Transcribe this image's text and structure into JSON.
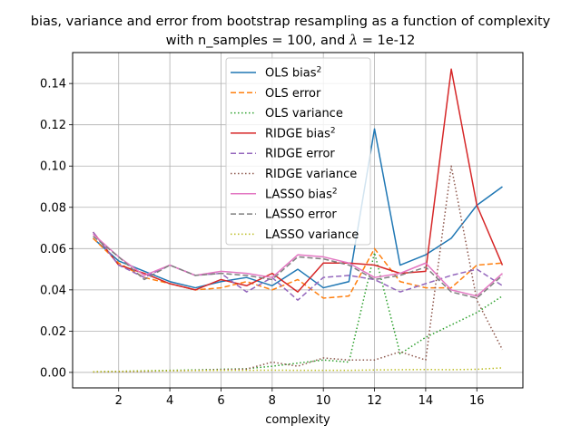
{
  "chart_data": {
    "type": "line",
    "title": "bias, variance and error from bootstrap resampling as a function of complexity",
    "subtitle_prefix": "with n_samples = 100, and ",
    "subtitle_lambda": "λ",
    "subtitle_suffix": " = 1e-12",
    "xlabel": "complexity",
    "ylabel": "",
    "xlim": [
      0.2,
      17.8
    ],
    "ylim": [
      -0.0075,
      0.155
    ],
    "grid": true,
    "legend_position": "top-center",
    "x_ticks": [
      {
        "value": 2,
        "label": "2"
      },
      {
        "value": 4,
        "label": "4"
      },
      {
        "value": 6,
        "label": "6"
      },
      {
        "value": 8,
        "label": "8"
      },
      {
        "value": 10,
        "label": "10"
      },
      {
        "value": 12,
        "label": "12"
      },
      {
        "value": 14,
        "label": "14"
      },
      {
        "value": 16,
        "label": "16"
      }
    ],
    "y_ticks": [
      {
        "value": 0.0,
        "label": "0.00"
      },
      {
        "value": 0.02,
        "label": "0.02"
      },
      {
        "value": 0.04,
        "label": "0.04"
      },
      {
        "value": 0.06,
        "label": "0.06"
      },
      {
        "value": 0.08,
        "label": "0.08"
      },
      {
        "value": 0.1,
        "label": "0.10"
      },
      {
        "value": 0.12,
        "label": "0.12"
      },
      {
        "value": 0.14,
        "label": "0.14"
      }
    ],
    "x": [
      1,
      2,
      3,
      4,
      5,
      6,
      7,
      8,
      9,
      10,
      11,
      12,
      13,
      14,
      15,
      16,
      17
    ],
    "series": [
      {
        "name": "OLS bias",
        "superscript": "2",
        "color": "#1f77b4",
        "style": "solid",
        "values": [
          0.065,
          0.054,
          0.049,
          0.044,
          0.041,
          0.044,
          0.046,
          0.042,
          0.05,
          0.041,
          0.044,
          0.118,
          0.052,
          0.057,
          0.065,
          0.081,
          0.09
        ]
      },
      {
        "name": "OLS error",
        "superscript": "",
        "color": "#ff7f0e",
        "style": "dashed",
        "values": [
          0.065,
          0.053,
          0.046,
          0.043,
          0.04,
          0.041,
          0.044,
          0.04,
          0.045,
          0.036,
          0.037,
          0.06,
          0.044,
          0.041,
          0.041,
          0.052,
          0.053
        ]
      },
      {
        "name": "OLS variance",
        "superscript": "",
        "color": "#2ca02c",
        "style": "dotted",
        "values": [
          0.0003,
          0.0005,
          0.0008,
          0.001,
          0.0012,
          0.0015,
          0.0018,
          0.003,
          0.0045,
          0.006,
          0.005,
          0.058,
          0.009,
          0.017,
          0.023,
          0.029,
          0.037
        ]
      },
      {
        "name": "RIDGE bias",
        "superscript": "2",
        "color": "#d62728",
        "style": "solid",
        "values": [
          0.068,
          0.052,
          0.048,
          0.043,
          0.04,
          0.045,
          0.042,
          0.048,
          0.039,
          0.053,
          0.053,
          0.052,
          0.048,
          0.049,
          0.147,
          0.081,
          0.052
        ]
      },
      {
        "name": "RIDGE error",
        "superscript": "",
        "color": "#9467bd",
        "style": "dashed",
        "values": [
          0.068,
          0.052,
          0.046,
          0.052,
          0.047,
          0.048,
          0.039,
          0.046,
          0.035,
          0.046,
          0.047,
          0.045,
          0.039,
          0.043,
          0.047,
          0.05,
          0.042
        ]
      },
      {
        "name": "RIDGE variance",
        "superscript": "",
        "color": "#8c564b",
        "style": "dotted",
        "values": [
          0.0002,
          0.0003,
          0.0005,
          0.0008,
          0.001,
          0.0013,
          0.0016,
          0.005,
          0.003,
          0.007,
          0.006,
          0.006,
          0.01,
          0.006,
          0.1,
          0.035,
          0.011
        ]
      },
      {
        "name": "LASSO bias",
        "superscript": "2",
        "color": "#e377c2",
        "style": "solid",
        "values": [
          0.067,
          0.056,
          0.047,
          0.052,
          0.047,
          0.049,
          0.048,
          0.046,
          0.057,
          0.056,
          0.053,
          0.046,
          0.048,
          0.053,
          0.04,
          0.037,
          0.048
        ]
      },
      {
        "name": "LASSO error",
        "superscript": "",
        "color": "#7f7f7f",
        "style": "dashed",
        "values": [
          0.066,
          0.056,
          0.045,
          0.052,
          0.047,
          0.048,
          0.047,
          0.045,
          0.056,
          0.055,
          0.052,
          0.045,
          0.047,
          0.051,
          0.039,
          0.036,
          0.047
        ]
      },
      {
        "name": "LASSO variance",
        "superscript": "",
        "color": "#bcbd22",
        "style": "dotted",
        "values": [
          0.0003,
          0.0005,
          0.0007,
          0.0008,
          0.0009,
          0.001,
          0.001,
          0.0011,
          0.001,
          0.001,
          0.001,
          0.0012,
          0.0013,
          0.0014,
          0.0013,
          0.0015,
          0.0022
        ]
      }
    ]
  }
}
